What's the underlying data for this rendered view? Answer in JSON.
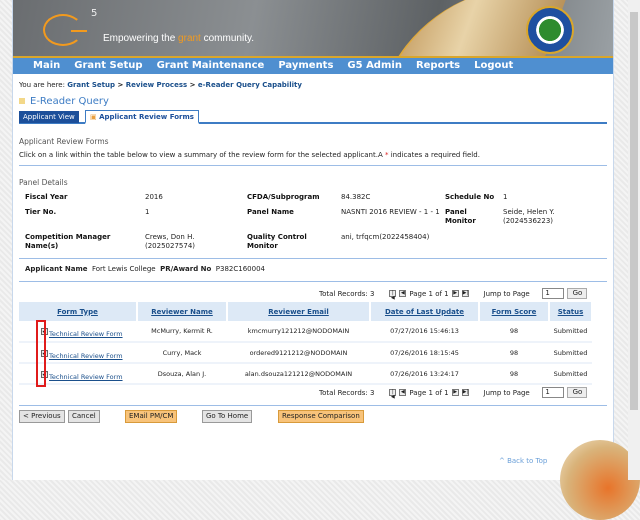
{
  "banner": {
    "logo": "G5",
    "tagline_pre": "Empowering the ",
    "tagline_accent": "grant",
    "tagline_post": " community.",
    "seal_text": "Department of Education"
  },
  "nav": [
    "Main",
    "Grant Setup",
    "Grant Maintenance",
    "Payments",
    "G5 Admin",
    "Reports",
    "Logout"
  ],
  "breadcrumb": {
    "prefix": "You are here:",
    "items": [
      "Grant Setup",
      "Review Process",
      "e-Reader Query Capability"
    ],
    "sep": " > "
  },
  "title": "E-Reader Query",
  "tabs": [
    {
      "label": "Applicant View"
    },
    {
      "label": "Applicant Review Forms",
      "active": true
    }
  ],
  "section_title": "Applicant Review Forms",
  "instructions": "Click on a link within the table below to view a summary of the review form for the selected applicant.A ",
  "req_mark": "*",
  "req_text": " indicates a required field.",
  "panel": {
    "heading": "Panel Details",
    "fiscal_year_label": "Fiscal Year",
    "fiscal_year": "2016",
    "cfda_label": "CFDA/Subprogram",
    "cfda": "84.382C",
    "schedule_label": "Schedule No",
    "schedule": "1",
    "tier_label": "Tier No.",
    "tier": "1",
    "panel_name_label": "Panel Name",
    "panel_name": "NASNTI 2016 REVIEW - 1 - 1",
    "monitor_label": "Panel Monitor",
    "monitor": "Seide, Helen Y. (2024536223)",
    "cm_label": "Competition Manager Name(s)",
    "cm": "Crews, Don H. (2025027574)",
    "qc_label": "Quality Control Monitor",
    "qc": "ani, trfqcm(2022458404)"
  },
  "applicant": {
    "name_label": "Applicant Name",
    "name": "Fort Lewis College",
    "award_label": "PR/Award No",
    "award": "P382C160004"
  },
  "pager": {
    "total": "Total Records: 3",
    "page": "Page 1 of 1",
    "jump": "Jump to Page",
    "page_value": "1",
    "go": "Go"
  },
  "table": {
    "headers": [
      "Form Type",
      "Reviewer Name",
      "Reviewer Email",
      "Date of Last Update",
      "Form Score",
      "Status"
    ],
    "rows": [
      {
        "form": "Technical Review Form",
        "name": "McMurry, Kermit R.",
        "email": "kmcmurry121212@NODOMAIN",
        "date": "07/27/2016 15:46:13",
        "score": "98",
        "status": "Submitted",
        "checked": true
      },
      {
        "form": "Technical Review Form",
        "name": "Curry, Mack",
        "email": "ordered9121212@NODOMAIN",
        "date": "07/26/2016 18:15:45",
        "score": "98",
        "status": "Submitted",
        "checked": true
      },
      {
        "form": "Technical Review Form",
        "name": "Dsouza, Alan J.",
        "email": "alan.dsouza121212@NODOMAIN",
        "date": "07/26/2016 13:24:17",
        "score": "98",
        "status": "Submitted",
        "checked": true
      }
    ]
  },
  "buttons": {
    "previous": "< Previous",
    "cancel": "Cancel",
    "email": "EMail PM/CM",
    "home": "Go To Home",
    "compare": "Response Comparison"
  },
  "back_to_top": "^ Back to Top",
  "colors": {
    "nav": "#4f8fd0",
    "accent": "#f29a1e",
    "tab_active": "#1c4f9a",
    "highlight": "#e01b1b"
  }
}
